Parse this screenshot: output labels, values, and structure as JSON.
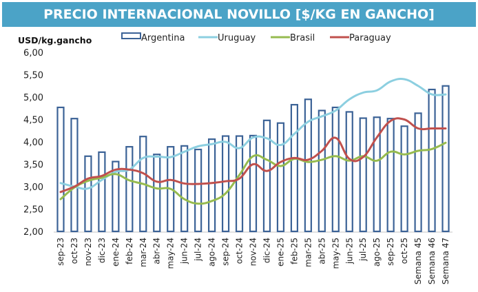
{
  "header": {
    "title": "PRECIO INTERNACIONAL NOVILLO [$/KG EN GANCHO]"
  },
  "colors": {
    "title_bg": "#4ba3c7",
    "argentina": "#3b6296",
    "uruguay": "#8ccfe0",
    "brasil": "#96bb4f",
    "paraguay": "#c0504d"
  },
  "chart_data": {
    "type": "bar",
    "title": "PRECIO INTERNACIONAL NOVILLO [$/KG EN GANCHO]",
    "xlabel": "",
    "ylabel": "USD/kg.gancho",
    "ylim": [
      2.0,
      6.0
    ],
    "yticks": [
      "2,00",
      "2,50",
      "3,00",
      "3,50",
      "4,00",
      "4,50",
      "5,00",
      "5,50",
      "6,00"
    ],
    "ytick_values": [
      2.0,
      2.5,
      3.0,
      3.5,
      4.0,
      4.5,
      5.0,
      5.5,
      6.0
    ],
    "grid": false,
    "legend_position": "top",
    "categories": [
      "sep-23",
      "oct-23",
      "nov-23",
      "dic-23",
      "ene-24",
      "feb-24",
      "mar-24",
      "abr-24",
      "may-24",
      "jun-24",
      "jul-24",
      "ago-24",
      "sep-24",
      "oct-24",
      "nov-24",
      "dic-24",
      "ene-25",
      "feb-25",
      "mar-25",
      "abr-25",
      "may-25",
      "jun-25",
      "jul-25",
      "ago-25",
      "sep-25",
      "oct-25",
      "Semana 45",
      "Semana 46",
      "Semana 47"
    ],
    "series": [
      {
        "name": "Argentina",
        "kind": "bar-outline",
        "values": [
          4.77,
          4.52,
          3.68,
          3.77,
          3.56,
          3.89,
          4.12,
          3.72,
          3.89,
          3.91,
          3.83,
          4.06,
          4.13,
          4.13,
          4.14,
          4.48,
          4.42,
          4.83,
          4.95,
          4.7,
          4.77,
          4.67,
          4.53,
          4.55,
          4.52,
          4.35,
          4.64,
          5.17,
          5.25
        ]
      },
      {
        "name": "Uruguay",
        "kind": "smooth-line",
        "values": [
          3.08,
          3.0,
          2.96,
          3.15,
          3.33,
          3.38,
          3.64,
          3.67,
          3.66,
          3.78,
          3.9,
          3.95,
          4.0,
          3.86,
          4.1,
          4.08,
          3.93,
          4.18,
          4.45,
          4.57,
          4.7,
          4.95,
          5.1,
          5.15,
          5.35,
          5.4,
          5.25,
          5.06,
          5.06
        ]
      },
      {
        "name": "Brasil",
        "kind": "smooth-line",
        "values": [
          2.72,
          2.98,
          3.13,
          3.2,
          3.28,
          3.14,
          3.06,
          2.96,
          2.95,
          2.72,
          2.62,
          2.68,
          2.85,
          3.26,
          3.68,
          3.6,
          3.46,
          3.62,
          3.55,
          3.6,
          3.68,
          3.58,
          3.68,
          3.58,
          3.78,
          3.72,
          3.8,
          3.84,
          3.98
        ]
      },
      {
        "name": "Paraguay",
        "kind": "smooth-line",
        "values": [
          2.88,
          3.0,
          3.18,
          3.24,
          3.38,
          3.38,
          3.3,
          3.11,
          3.15,
          3.07,
          3.06,
          3.08,
          3.12,
          3.18,
          3.5,
          3.35,
          3.55,
          3.64,
          3.6,
          3.8,
          4.09,
          3.62,
          3.66,
          4.1,
          4.47,
          4.5,
          4.3,
          4.3,
          4.3
        ]
      }
    ]
  }
}
